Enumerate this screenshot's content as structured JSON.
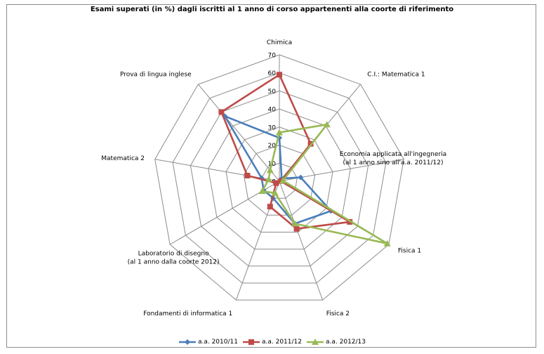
{
  "chart_data": {
    "type": "radar",
    "title": "Esami superati (in %) dagli iscritti al 1  anno di corso  appartenenti alla coorte di riferimento",
    "categories": [
      [
        "Chimica"
      ],
      [
        "C.I.: Matematica 1"
      ],
      [
        "Economia applicata all'ingegneria",
        "(al 1  anno sino all'a.a. 2011/12)"
      ],
      [
        "Fisica 1"
      ],
      [
        "Fisica 2"
      ],
      [
        "Fondamenti di informatica 1"
      ],
      [
        "Laboratorio di disegno",
        "(al 1  anno dalla coorte 2012)"
      ],
      [
        "Matematica 2"
      ],
      [
        "Prova di lingua inglese"
      ]
    ],
    "ticks": [
      "0",
      "10",
      "20",
      "30",
      "40",
      "50",
      "60",
      "70"
    ],
    "range": [
      0,
      70
    ],
    "series": [
      {
        "name": "a.a. 2010/11",
        "color": "#4a7ebb",
        "marker": "diamond",
        "values": [
          24,
          2,
          12,
          33,
          25,
          10,
          10,
          10,
          47
        ]
      },
      {
        "name": "a.a. 2011/12",
        "color": "#be4b48",
        "marker": "square",
        "values": [
          59,
          27,
          1,
          45,
          28,
          15,
          2,
          18,
          50
        ]
      },
      {
        "name": "a.a. 2012/13",
        "color": "#98b954",
        "marker": "triangle",
        "values": [
          27,
          41,
          2,
          69,
          25,
          7,
          11,
          6,
          8
        ]
      }
    ],
    "legend_position": "bottom",
    "grid": true
  }
}
